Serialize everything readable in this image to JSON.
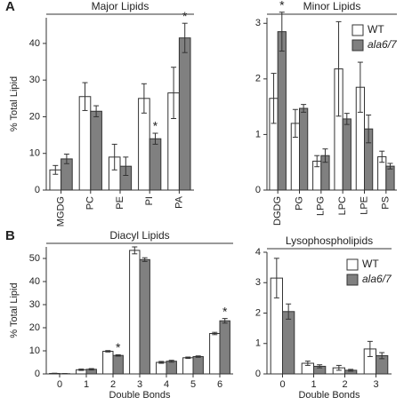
{
  "chart_data": [
    {
      "type": "bar",
      "panel": "A",
      "title": "Major Lipids",
      "ylabel": "% Total Lipid",
      "categories": [
        "MGDG",
        "PC",
        "PE",
        "PI",
        "PA"
      ],
      "series": [
        {
          "color": "#ffffff",
          "values": [
            5.5,
            25.5,
            9,
            25,
            26.5
          ],
          "errors": [
            1.2,
            3.8,
            3.5,
            4,
            7
          ]
        },
        {
          "color": "#808080",
          "values": [
            8.5,
            21.5,
            6.5,
            14,
            41.5
          ],
          "errors": [
            1.3,
            1.5,
            2.5,
            1.5,
            4
          ]
        }
      ],
      "annotations": [
        {
          "text": "*",
          "series": 1,
          "category": 3
        },
        {
          "text": "*",
          "series": 1,
          "category": 4
        }
      ],
      "ylim": [
        0,
        47
      ],
      "yticks": [
        0,
        10,
        20,
        30,
        40
      ]
    },
    {
      "type": "bar",
      "title": "Minor Lipids",
      "categories": [
        "DGDG",
        "PG",
        "LPG",
        "LPC",
        "LPE",
        "PS"
      ],
      "series": [
        {
          "name": "WT",
          "color": "#ffffff",
          "values": [
            1.65,
            1.2,
            0.52,
            2.18,
            1.85,
            0.6
          ],
          "errors": [
            0.45,
            0.25,
            0.1,
            0.85,
            0.45,
            0.1
          ]
        },
        {
          "name": "ala6/7",
          "color": "#808080",
          "values": [
            2.85,
            1.47,
            0.62,
            1.28,
            1.1,
            0.43
          ],
          "errors": [
            0.35,
            0.07,
            0.12,
            0.1,
            0.25,
            0.05
          ]
        }
      ],
      "annotations": [
        {
          "text": "*",
          "series": 1,
          "category": 0
        }
      ],
      "ylim": [
        0,
        3.1
      ],
      "yticks": [
        0,
        1,
        2,
        3
      ],
      "legend": "top-right"
    },
    {
      "type": "bar",
      "panel": "B",
      "title": "Diacyl Lipids",
      "ylabel": "% Total Lipid",
      "xlabel": "Double Bonds",
      "categories": [
        "0",
        "1",
        "2",
        "3",
        "4",
        "5",
        "6"
      ],
      "series": [
        {
          "color": "#ffffff",
          "values": [
            0.2,
            1.8,
            9.8,
            53.5,
            5,
            7,
            17.5
          ],
          "errors": [
            0.1,
            0.3,
            0.3,
            1.5,
            0.4,
            0.3,
            0.5
          ]
        },
        {
          "color": "#808080",
          "values": [
            0.1,
            2.0,
            8.0,
            49.5,
            5.5,
            7.5,
            23
          ],
          "errors": [
            0.05,
            0.3,
            0.3,
            0.8,
            0.4,
            0.3,
            1
          ]
        }
      ],
      "annotations": [
        {
          "text": "*",
          "series": 1,
          "category": 2
        },
        {
          "text": "*",
          "series": 1,
          "category": 6
        }
      ],
      "ylim": [
        0,
        55
      ],
      "yticks": [
        0,
        10,
        20,
        30,
        40,
        50
      ]
    },
    {
      "type": "bar",
      "title": "Lysophospholipids",
      "xlabel": "Double Bonds",
      "categories": [
        "0",
        "1",
        "2",
        "3"
      ],
      "series": [
        {
          "name": "WT",
          "color": "#ffffff",
          "values": [
            3.15,
            0.35,
            0.2,
            0.82
          ],
          "errors": [
            0.65,
            0.07,
            0.08,
            0.25
          ]
        },
        {
          "name": "ala6/7",
          "color": "#808080",
          "values": [
            2.05,
            0.25,
            0.12,
            0.6
          ],
          "errors": [
            0.25,
            0.05,
            0.03,
            0.1
          ]
        }
      ],
      "ylim": [
        0,
        4
      ],
      "yticks": [
        0,
        1,
        2,
        3,
        4
      ],
      "legend": "top-right"
    }
  ]
}
